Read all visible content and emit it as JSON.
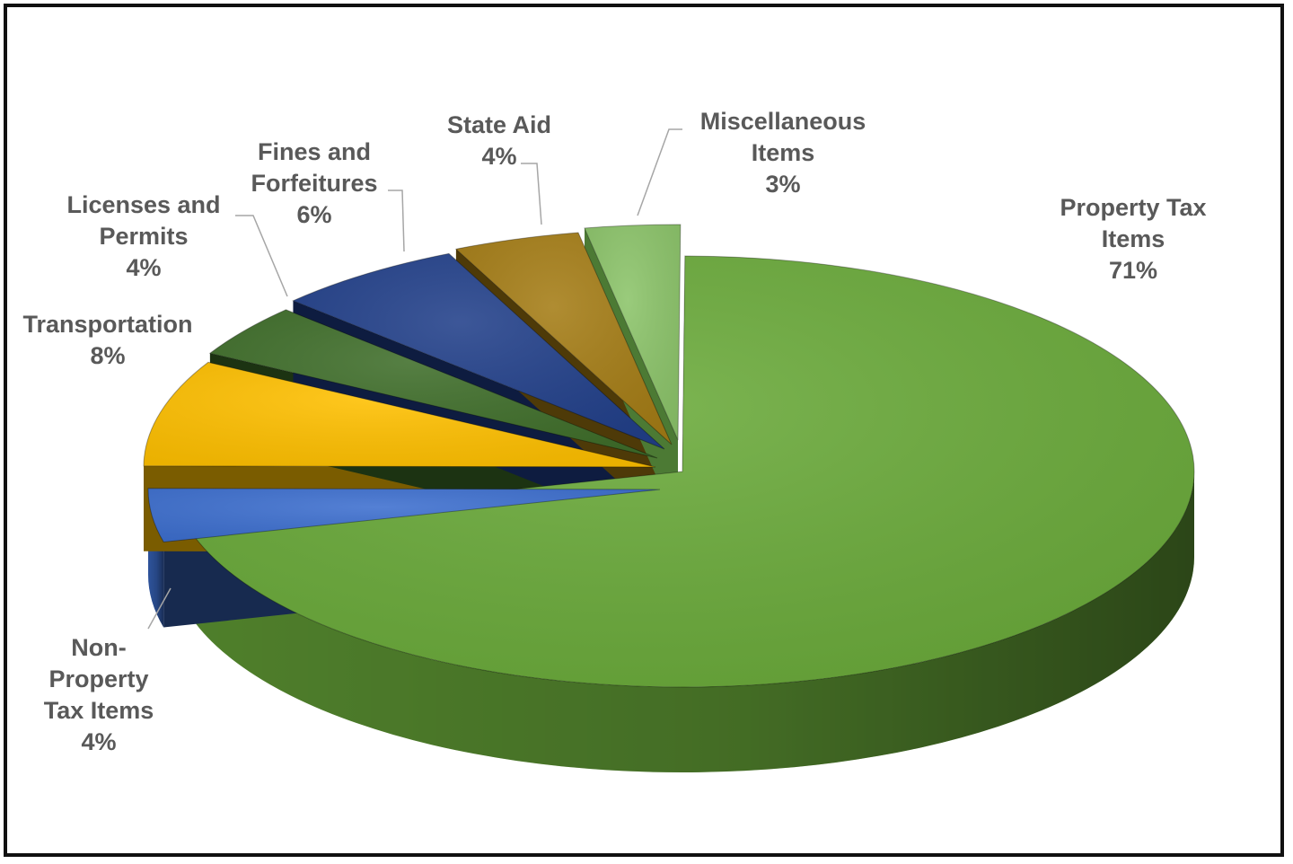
{
  "chart_data": {
    "type": "pie",
    "style": "3d-exploded",
    "title": "",
    "slices": [
      {
        "name": "Property Tax Items",
        "lines": [
          "Property Tax",
          "Items"
        ],
        "value": 71,
        "value_label": "71%",
        "color": "#6aaa3a",
        "dark": "#2a4a16"
      },
      {
        "name": "Non-Property Tax Items",
        "lines": [
          "Non-",
          "Property",
          "Tax Items"
        ],
        "value": 4,
        "value_label": "4%",
        "color": "#3d6fcf",
        "dark": "#172a4f"
      },
      {
        "name": "Transportation",
        "lines": [
          "Transportation"
        ],
        "value": 8,
        "value_label": "8%",
        "color": "#ffc000",
        "dark": "#7a5c00"
      },
      {
        "name": "Licenses and Permits",
        "lines": [
          "Licenses and",
          "Permits"
        ],
        "value": 4,
        "value_label": "4%",
        "color": "#3f6e2a",
        "dark": "#1c3312"
      },
      {
        "name": "Fines and Forfeitures",
        "lines": [
          "Fines and",
          "Forfeitures"
        ],
        "value": 6,
        "value_label": "6%",
        "color": "#22408a",
        "dark": "#0e1c40"
      },
      {
        "name": "State Aid",
        "lines": [
          "State Aid"
        ],
        "value": 4,
        "value_label": "4%",
        "color": "#a57d16",
        "dark": "#4e3a08"
      },
      {
        "name": "Miscellaneous Items",
        "lines": [
          "Miscellaneous",
          "Items"
        ],
        "value": 3,
        "value_label": "3%",
        "color": "#8cc46a",
        "dark": "#4c7a34"
      }
    ],
    "legend": "none",
    "data_labels": "outside with leader lines"
  }
}
